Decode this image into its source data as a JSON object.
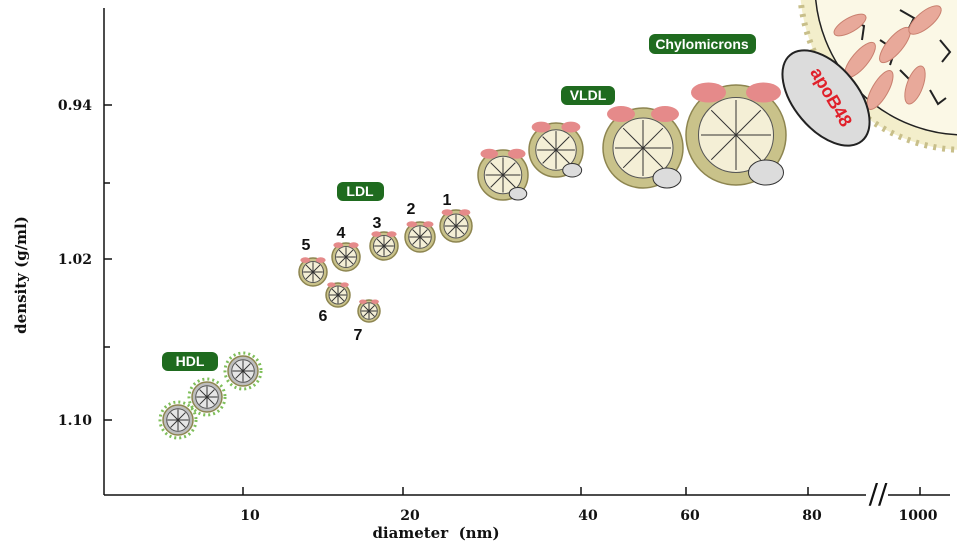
{
  "y_axis": {
    "label": "density (g/ml)",
    "ticks": [
      "0.94",
      "1.02",
      "1.10"
    ]
  },
  "x_axis": {
    "label": "diameter  (nm)",
    "ticks": [
      "10",
      "20",
      "40",
      "60",
      "80",
      "1000"
    ],
    "break": "//"
  },
  "classes": [
    "HDL",
    "LDL",
    "VLDL",
    "Chylomicrons"
  ],
  "subclasses": [
    "1",
    "2",
    "3",
    "4",
    "5",
    "6",
    "7"
  ],
  "protein": "apoB48"
}
